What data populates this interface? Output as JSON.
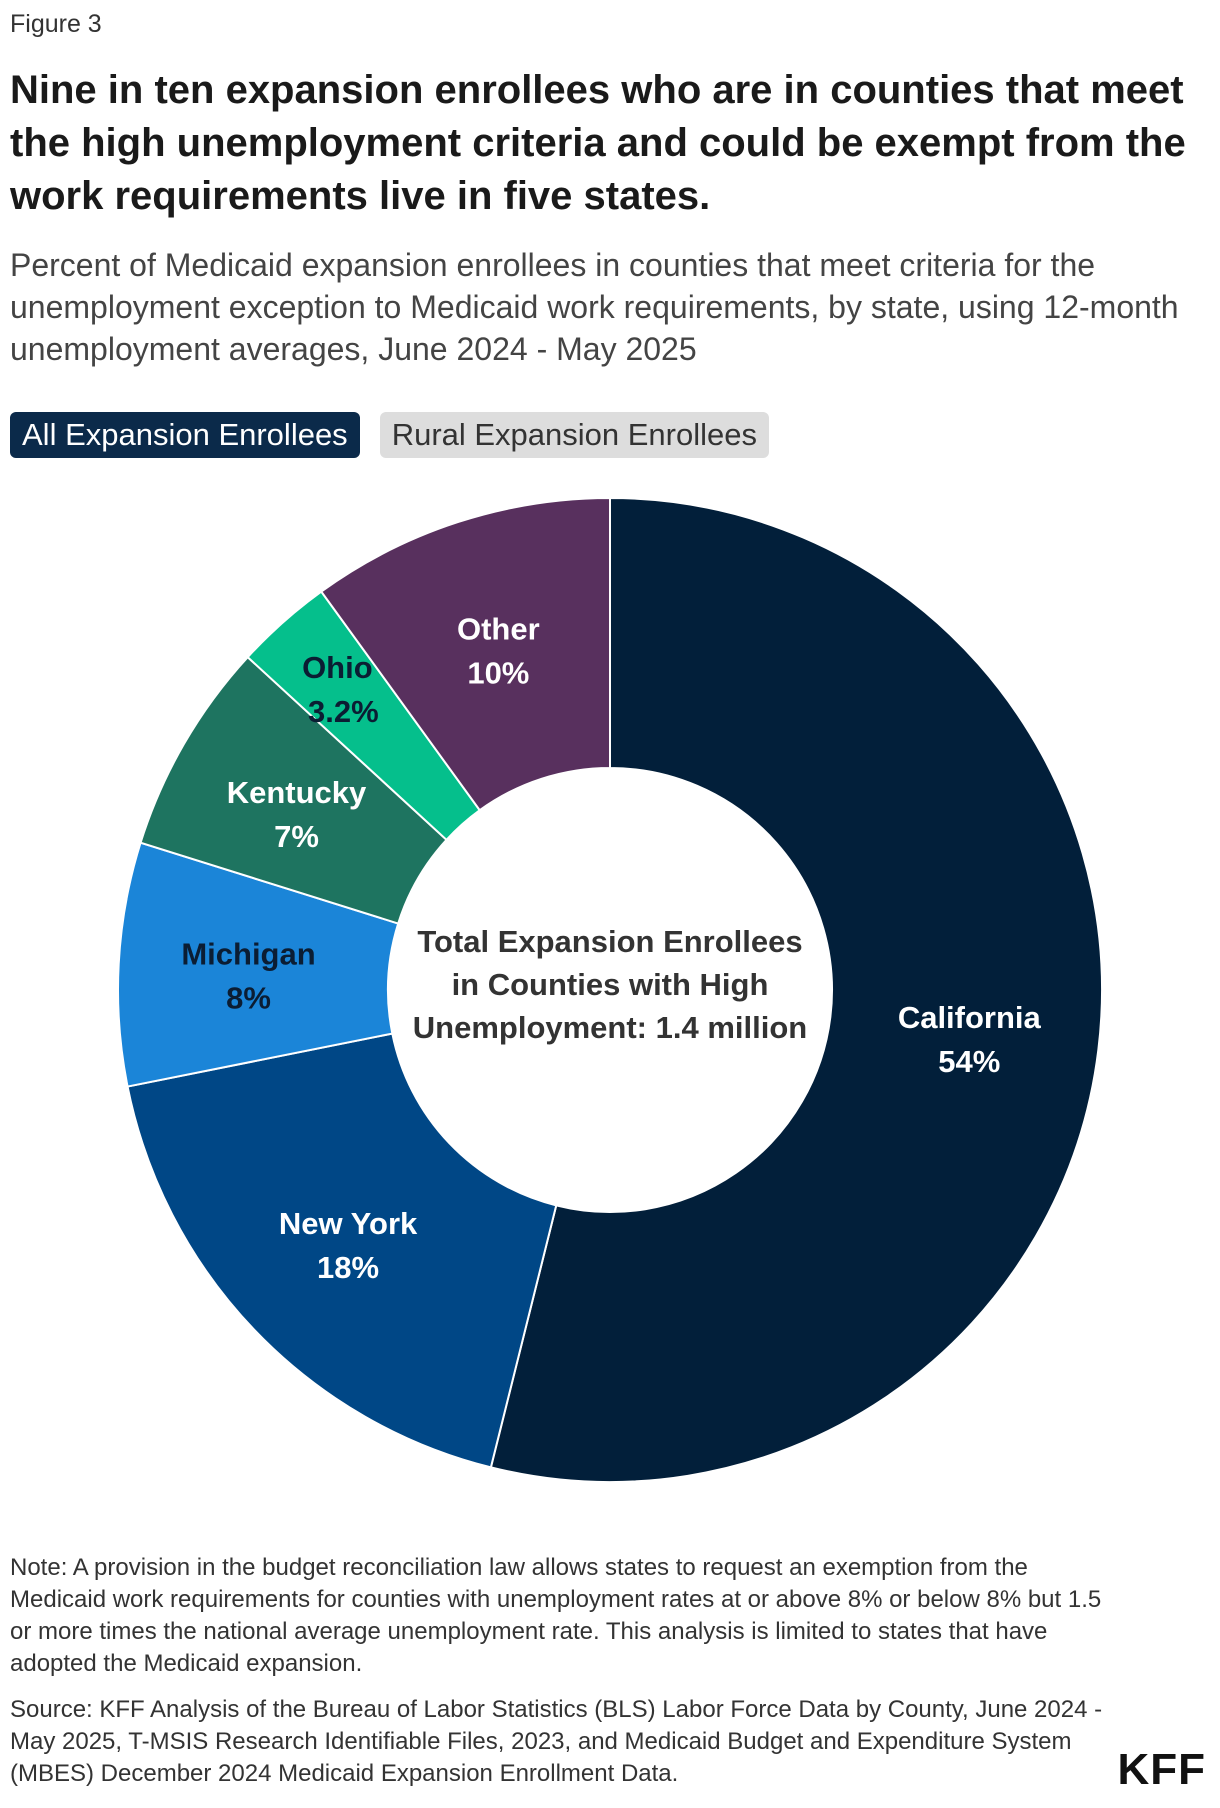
{
  "figure_label": "Figure 3",
  "title": "Nine in ten expansion enrollees who are in counties that meet the high unemployment criteria and could be exempt from the work requirements live in five states.",
  "subtitle": "Percent of Medicaid expansion enrollees in counties that meet criteria for the unemployment exception to Medicaid work requirements, by state, using 12-month unemployment averages, June 2024 - May 2025",
  "tabs": [
    {
      "label": "All Expansion Enrollees",
      "active": true
    },
    {
      "label": "Rural Expansion Enrollees",
      "active": false
    }
  ],
  "chart_data": {
    "type": "pie",
    "donut": true,
    "center_text": [
      "Total Expansion Enrollees",
      "in Counties with High",
      "Unemployment: 1.4 million"
    ],
    "slices": [
      {
        "label": "California",
        "value": 54,
        "display": "54%",
        "color": "#021f3a",
        "text_color": "#ffffff"
      },
      {
        "label": "New York",
        "value": 18,
        "display": "18%",
        "color": "#004786",
        "text_color": "#ffffff"
      },
      {
        "label": "Michigan",
        "value": 8,
        "display": "8%",
        "color": "#1b85d8",
        "text_color": "#0b1d33"
      },
      {
        "label": "Kentucky",
        "value": 7,
        "display": "7%",
        "color": "#1e7460",
        "text_color": "#ffffff"
      },
      {
        "label": "Ohio",
        "value": 3.2,
        "display": "3.2%",
        "color": "#05bf8c",
        "text_color": "#0b1d33"
      },
      {
        "label": "Other",
        "value": 10,
        "display": "10%",
        "color": "#58305e",
        "text_color": "#ffffff"
      }
    ]
  },
  "note": "Note: A provision in the budget reconciliation law allows states to request an exemption from the Medicaid work requirements for counties with unemployment rates at or above 8% or below 8% but 1.5 or more times the national average unemployment rate. This analysis is limited to states that have adopted the Medicaid expansion.",
  "source": "Source: KFF Analysis of the Bureau of Labor Statistics (BLS) Labor Force Data by County, June 2024 - May 2025, T-MSIS Research Identifiable Files, 2023, and Medicaid Budget and Expenditure System (MBES) December 2024 Medicaid Expansion Enrollment Data.",
  "logo": "KFF"
}
